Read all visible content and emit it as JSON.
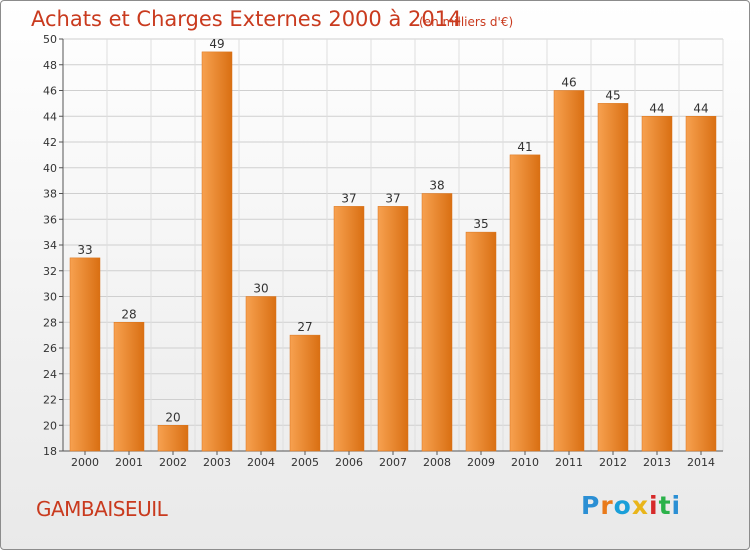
{
  "header": {
    "title": "Achats et Charges Externes 2000 à 2014",
    "subtitle": "(en milliers d'€)"
  },
  "footer": {
    "place": "GAMBAISEUIL",
    "logo": "Proxiti",
    "logo_colors": [
      "#2b8fd4",
      "#e97a1a",
      "#1a9fd9",
      "#e9b51a",
      "#d62a2a",
      "#2bb24a",
      "#2b8fd4"
    ]
  },
  "chart_data": {
    "type": "bar",
    "title": "Achats et Charges Externes 2000 à 2014",
    "subtitle": "(en milliers d'€)",
    "xlabel": "",
    "ylabel": "",
    "categories": [
      "2000",
      "2001",
      "2002",
      "2003",
      "2004",
      "2005",
      "2006",
      "2007",
      "2008",
      "2009",
      "2010",
      "2011",
      "2012",
      "2013",
      "2014"
    ],
    "values": [
      33,
      28,
      20,
      49,
      30,
      27,
      37,
      37,
      38,
      35,
      41,
      46,
      45,
      44,
      44
    ],
    "ylim": [
      18,
      50
    ],
    "yticks": [
      18,
      20,
      22,
      24,
      26,
      28,
      30,
      32,
      34,
      36,
      38,
      40,
      42,
      44,
      46,
      48,
      50
    ],
    "grid": true,
    "bar_color_top": "#f7a150",
    "bar_color_bottom": "#d96f12"
  }
}
